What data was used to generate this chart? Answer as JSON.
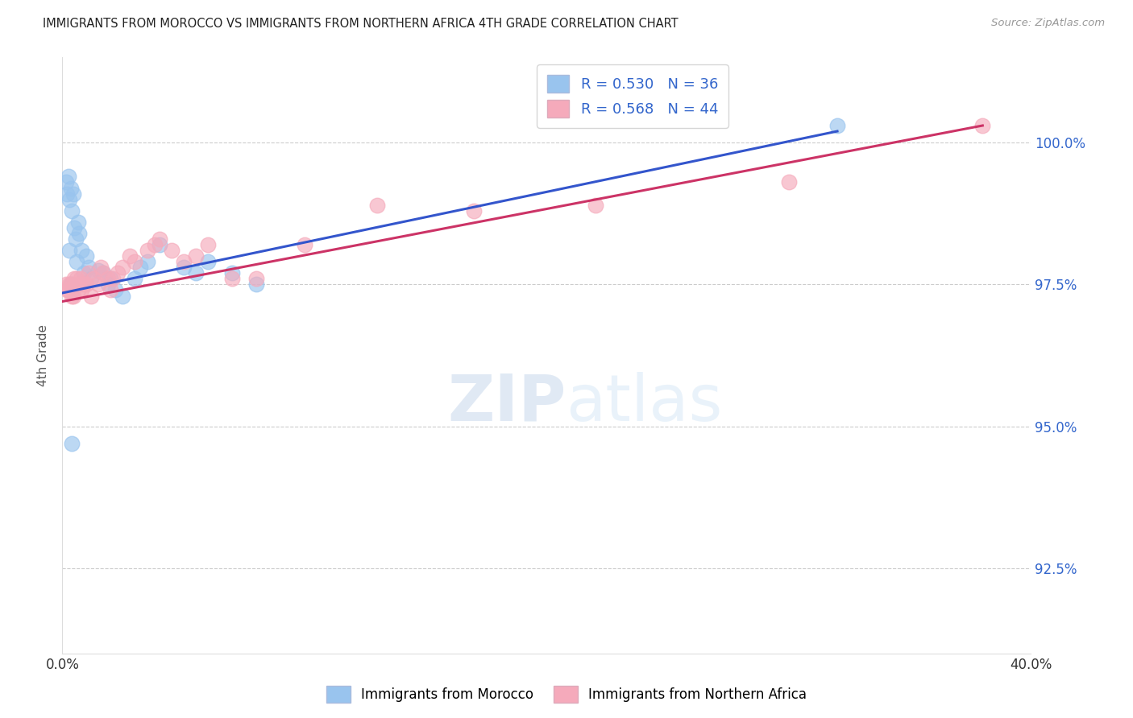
{
  "title": "IMMIGRANTS FROM MOROCCO VS IMMIGRANTS FROM NORTHERN AFRICA 4TH GRADE CORRELATION CHART",
  "source": "Source: ZipAtlas.com",
  "ylabel": "4th Grade",
  "xmin": 0.0,
  "xmax": 40.0,
  "ymin": 91.0,
  "ymax": 101.5,
  "legend1_R": "0.530",
  "legend1_N": "36",
  "legend2_R": "0.568",
  "legend2_N": "44",
  "color_blue": "#99C4EE",
  "color_pink": "#F5AABB",
  "trendline_blue": "#3355CC",
  "trendline_pink": "#CC3366",
  "watermark_zip": "ZIP",
  "watermark_atlas": "atlas",
  "blue_trendline_x": [
    0.0,
    32.0
  ],
  "blue_trendline_y": [
    97.35,
    100.2
  ],
  "pink_trendline_x": [
    0.0,
    38.0
  ],
  "pink_trendline_y": [
    97.2,
    100.3
  ],
  "morocco_x": [
    0.2,
    0.3,
    0.35,
    0.4,
    0.45,
    0.5,
    0.55,
    0.6,
    0.65,
    0.7,
    0.8,
    0.9,
    1.0,
    1.1,
    1.2,
    1.5,
    1.7,
    1.9,
    2.0,
    2.2,
    2.5,
    3.0,
    3.2,
    3.5,
    4.0,
    5.0,
    5.5,
    6.0,
    7.0,
    8.0,
    0.15,
    0.25,
    0.3,
    0.35,
    32.0,
    0.4
  ],
  "morocco_y": [
    99.1,
    99.0,
    99.2,
    98.8,
    99.1,
    98.5,
    98.3,
    97.9,
    98.6,
    98.4,
    98.1,
    97.7,
    98.0,
    97.8,
    97.6,
    97.75,
    97.7,
    97.5,
    97.6,
    97.4,
    97.3,
    97.6,
    97.8,
    97.9,
    98.2,
    97.8,
    97.7,
    97.9,
    97.7,
    97.5,
    99.3,
    99.4,
    98.1,
    97.5,
    100.3,
    94.7
  ],
  "northafrica_x": [
    0.15,
    0.2,
    0.25,
    0.3,
    0.35,
    0.4,
    0.45,
    0.5,
    0.55,
    0.6,
    0.65,
    0.7,
    0.75,
    0.8,
    0.9,
    1.0,
    1.1,
    1.2,
    1.3,
    1.5,
    1.6,
    1.7,
    1.9,
    2.0,
    2.1,
    2.3,
    2.5,
    2.8,
    3.0,
    3.5,
    3.8,
    4.0,
    4.5,
    5.0,
    5.5,
    6.0,
    7.0,
    8.0,
    10.0,
    13.0,
    17.0,
    22.0,
    30.0,
    38.0
  ],
  "northafrica_y": [
    97.5,
    97.4,
    97.4,
    97.5,
    97.5,
    97.3,
    97.3,
    97.6,
    97.5,
    97.6,
    97.4,
    97.5,
    97.6,
    97.4,
    97.5,
    97.5,
    97.7,
    97.3,
    97.6,
    97.5,
    97.8,
    97.7,
    97.6,
    97.4,
    97.6,
    97.7,
    97.8,
    98.0,
    97.9,
    98.1,
    98.2,
    98.3,
    98.1,
    97.9,
    98.0,
    98.2,
    97.6,
    97.6,
    98.2,
    98.9,
    98.8,
    98.9,
    99.3,
    100.3
  ]
}
